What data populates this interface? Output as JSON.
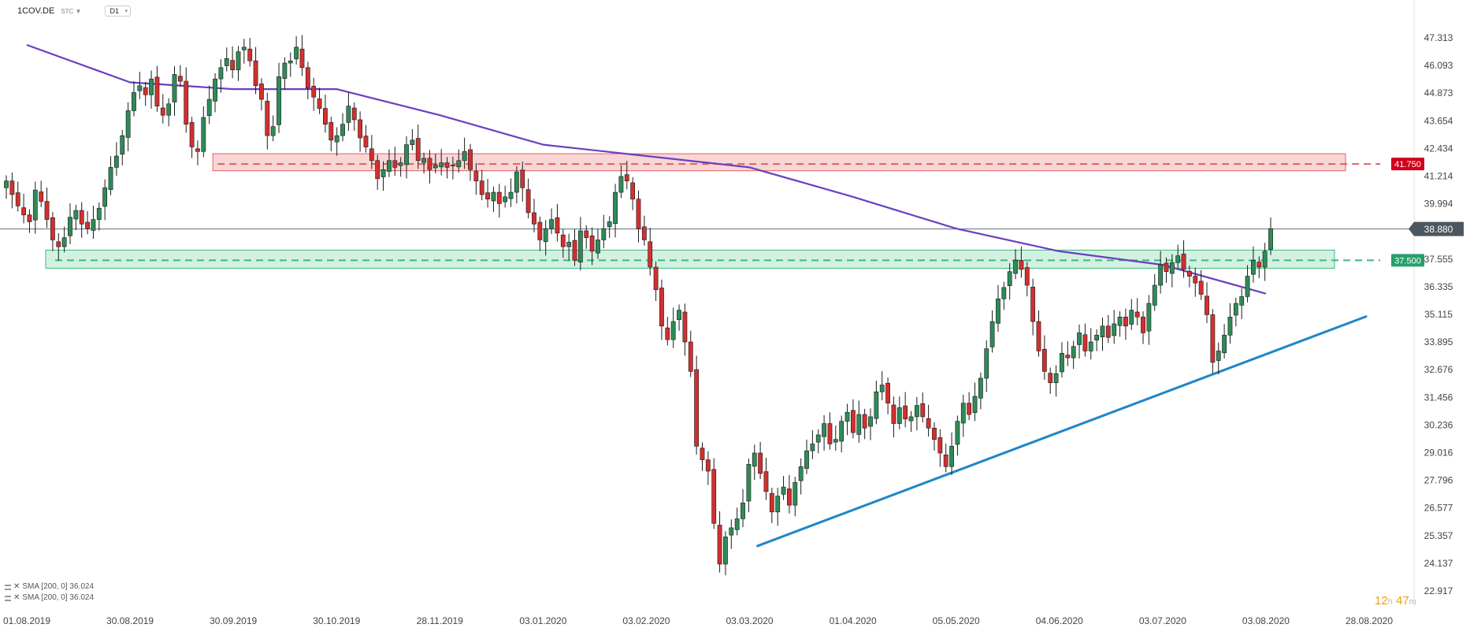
{
  "header": {
    "symbol": "1COV.DE",
    "type": "STC",
    "timeframe": "D1"
  },
  "legend": [
    {
      "label": "SMA [200, 0] 36.024"
    },
    {
      "label": "SMA [200, 0] 36.024"
    }
  ],
  "timer": {
    "hours": "12",
    "h_unit": "h",
    "minutes": "47",
    "m_unit": "m"
  },
  "colors": {
    "up": "#2e8b57",
    "down": "#d32f2f",
    "sma": "#6a3fc0",
    "trendline": "#1f86c9",
    "resistance_fill": "#f9d6d6",
    "resistance_line": "#e06060",
    "support_fill": "#d3f1e2",
    "support_line": "#3fb97c",
    "resistance_label_bg": "#d0021b",
    "support_label_bg": "#25a06a",
    "price_label_bg": "#4a5660"
  },
  "chart_data": {
    "type": "candlestick",
    "instrument": "1COV.DE",
    "yticks": [
      "47.313",
      "46.093",
      "44.873",
      "43.654",
      "42.434",
      "41.214",
      "39.994",
      "38.775",
      "37.555",
      "36.335",
      "35.115",
      "33.895",
      "32.676",
      "31.456",
      "30.236",
      "29.016",
      "27.796",
      "26.577",
      "25.357",
      "24.137",
      "22.917"
    ],
    "ylim": [
      22.917,
      47.313
    ],
    "xticks": [
      "01.08.2019",
      "30.08.2019",
      "30.09.2019",
      "30.10.2019",
      "28.11.2019",
      "03.01.2020",
      "03.02.2020",
      "03.03.2020",
      "01.04.2020",
      "05.05.2020",
      "04.06.2020",
      "03.07.2020",
      "03.08.2020",
      "28.08.2020"
    ],
    "current_price": {
      "value": 38.88,
      "label": "38.880"
    },
    "resistance": {
      "level": 41.75,
      "label": "41.750",
      "zone_low": 41.45,
      "zone_high": 42.2,
      "start": "30.09.2019"
    },
    "support": {
      "level": 37.5,
      "label": "37.500",
      "zone_low": 37.15,
      "zone_high": 37.95,
      "start": "01.08.2019"
    },
    "trendline": {
      "from": [
        "03.03.2020",
        24.9
      ],
      "to": [
        "28.08.2020",
        35.02
      ]
    },
    "sma": {
      "name": "SMA [200, 0]",
      "value": 36.024,
      "points": [
        [
          "01.08.2019",
          47.0
        ],
        [
          "30.08.2019",
          45.35
        ],
        [
          "30.09.2019",
          45.05
        ],
        [
          "30.10.2019",
          45.05
        ],
        [
          "28.11.2019",
          43.9
        ],
        [
          "03.01.2020",
          42.6
        ],
        [
          "03.02.2020",
          42.1
        ],
        [
          "03.03.2020",
          41.6
        ],
        [
          "01.04.2020",
          40.3
        ],
        [
          "05.05.2020",
          38.9
        ],
        [
          "04.06.2020",
          37.9
        ],
        [
          "03.07.2020",
          37.3
        ],
        [
          "03.08.2020",
          36.03
        ]
      ]
    },
    "closes": [
      41.0,
      40.4,
      39.9,
      39.5,
      39.2,
      40.6,
      40.1,
      39.3,
      38.4,
      38.1,
      38.5,
      39.4,
      39.7,
      39.1,
      38.9,
      39.3,
      39.8,
      40.7,
      41.6,
      42.1,
      43.0,
      44.1,
      44.9,
      45.2,
      44.8,
      45.5,
      44.3,
      43.9,
      44.4,
      45.7,
      45.4,
      43.5,
      42.5,
      42.3,
      43.8,
      44.6,
      45.5,
      46.0,
      46.4,
      45.9,
      46.7,
      46.9,
      46.3,
      45.2,
      44.6,
      43.0,
      43.4,
      45.6,
      46.2,
      46.3,
      46.9,
      46.0,
      45.1,
      44.7,
      44.2,
      43.5,
      42.8,
      43.0,
      43.5,
      44.3,
      43.7,
      42.9,
      42.5,
      41.9,
      41.1,
      41.5,
      41.9,
      41.6,
      41.8,
      42.6,
      42.8,
      41.9,
      42.0,
      41.5,
      41.7,
      41.8,
      41.6,
      41.7,
      41.9,
      42.3,
      41.5,
      41.0,
      40.4,
      40.2,
      40.5,
      40.0,
      40.3,
      40.5,
      41.4,
      40.7,
      39.6,
      39.1,
      38.4,
      38.9,
      39.3,
      38.7,
      38.1,
      38.3,
      37.5,
      38.8,
      38.5,
      37.9,
      38.4,
      38.9,
      39.2,
      40.5,
      41.2,
      41.0,
      40.2,
      38.9,
      38.4,
      37.2,
      36.2,
      34.6,
      34.0,
      34.8,
      35.3,
      33.9,
      32.6,
      29.3,
      28.7,
      28.2,
      25.9,
      24.1,
      25.3,
      25.7,
      26.1,
      26.8,
      28.5,
      29.0,
      28.1,
      27.3,
      26.4,
      27.1,
      27.5,
      26.7,
      27.7,
      28.4,
      29.1,
      29.4,
      29.8,
      30.3,
      29.4,
      29.6,
      30.4,
      30.8,
      29.9,
      30.7,
      30.1,
      30.6,
      31.7,
      32.0,
      31.2,
      30.3,
      31.0,
      30.5,
      30.6,
      31.1,
      30.6,
      30.1,
      29.6,
      29.0,
      28.4,
      29.3,
      30.4,
      31.2,
      30.7,
      31.5,
      32.3,
      33.6,
      34.8,
      35.8,
      36.3,
      37.0,
      37.5,
      37.1,
      36.4,
      34.8,
      33.5,
      32.6,
      32.1,
      32.5,
      33.4,
      33.2,
      33.7,
      34.3,
      33.5,
      33.9,
      34.2,
      34.6,
      34.1,
      34.7,
      35.0,
      34.6,
      35.3,
      35.0,
      34.3,
      35.6,
      36.4,
      37.3,
      37.0,
      37.4,
      37.7,
      37.1,
      36.8,
      36.5,
      36.0,
      35.1,
      33.0,
      33.5,
      34.2,
      35.0,
      35.6,
      35.9,
      36.8,
      37.5,
      37.2,
      37.9,
      38.9
    ]
  }
}
